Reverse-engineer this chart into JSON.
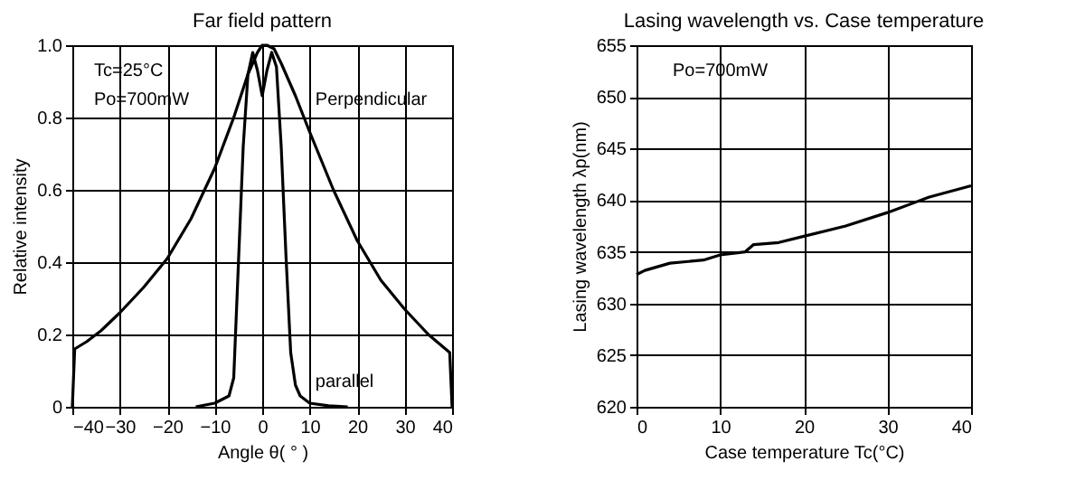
{
  "chart_data": [
    {
      "type": "line",
      "title": "Far field pattern",
      "xlabel": "Angle θ( ° )",
      "ylabel": "Relative intensity",
      "annotations": [
        "Tc=25°C",
        "Po=700mW"
      ],
      "xlim": [
        -40,
        40
      ],
      "xticks": [
        -40,
        -30,
        -20,
        -10,
        0,
        10,
        20,
        30,
        40
      ],
      "ylim": [
        0,
        1
      ],
      "yticks": [
        {
          "value": 0,
          "label": "0"
        },
        0.2,
        0.4,
        0.6,
        0.8,
        {
          "value": 1,
          "label": "1.0"
        }
      ],
      "grid": true,
      "series": [
        {
          "name": "Perpendicular",
          "color": "#000000",
          "x": [
            -40,
            -39.5,
            -37,
            -34,
            -30,
            -25,
            -20,
            -15,
            -10,
            -6,
            -3,
            -1,
            0,
            1,
            2.5,
            4,
            7,
            10,
            15,
            20,
            25,
            30,
            35,
            39.5,
            40
          ],
          "values": [
            0,
            0.16,
            0.18,
            0.21,
            0.26,
            0.33,
            0.41,
            0.52,
            0.66,
            0.8,
            0.92,
            0.98,
            1.0,
            1.0,
            0.99,
            0.95,
            0.86,
            0.76,
            0.6,
            0.46,
            0.35,
            0.27,
            0.2,
            0.15,
            0
          ]
        },
        {
          "name": "parallel",
          "color": "#000000",
          "x": [
            -14,
            -10,
            -7,
            -6,
            -5,
            -4,
            -3,
            -2,
            -1,
            0,
            1,
            2,
            3,
            4,
            5,
            6,
            7,
            8,
            10,
            14,
            18
          ],
          "values": [
            0,
            0.01,
            0.03,
            0.08,
            0.4,
            0.72,
            0.92,
            0.98,
            0.93,
            0.86,
            0.93,
            0.98,
            0.94,
            0.72,
            0.42,
            0.15,
            0.06,
            0.03,
            0.01,
            0.003,
            0
          ]
        }
      ]
    },
    {
      "type": "line",
      "title": "Lasing wavelength vs. Case temperature",
      "xlabel": "Case temperature Tc(°C)",
      "ylabel": "Lasing wavelength λp(nm)",
      "annotations": [
        "Po=700mW"
      ],
      "xlim": [
        0,
        40
      ],
      "xticks": [
        0,
        10,
        20,
        30,
        40
      ],
      "ylim": [
        620,
        655
      ],
      "yticks": [
        620,
        625,
        630,
        635,
        640,
        645,
        650,
        655
      ],
      "grid": true,
      "series": [
        {
          "color": "#000000",
          "x": [
            0,
            1,
            4,
            8,
            10,
            13,
            14,
            17,
            20,
            25,
            30,
            35,
            40
          ],
          "values": [
            632.8,
            633.2,
            633.9,
            634.2,
            634.7,
            635.0,
            635.7,
            635.9,
            636.5,
            637.5,
            638.8,
            640.3,
            641.4
          ]
        }
      ]
    }
  ]
}
